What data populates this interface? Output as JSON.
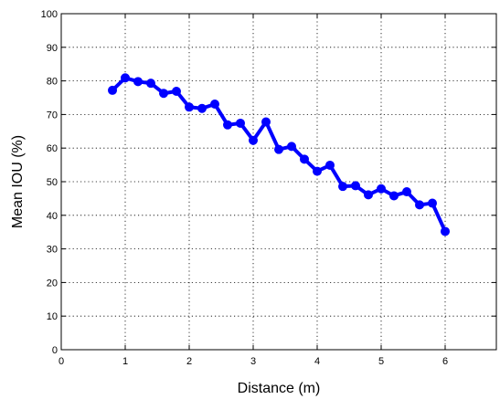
{
  "chart_data": {
    "type": "line",
    "xlabel": "Distance (m)",
    "ylabel": "Mean IOU (%)",
    "xlim": [
      0,
      6.8
    ],
    "ylim": [
      0,
      100
    ],
    "xticks": [
      0,
      1,
      2,
      3,
      4,
      5,
      6
    ],
    "yticks": [
      0,
      10,
      20,
      30,
      40,
      50,
      60,
      70,
      80,
      90,
      100
    ],
    "grid": true,
    "series": [
      {
        "color": "#0000ff",
        "marker": "circle",
        "x": [
          0.8,
          1.0,
          1.2,
          1.4,
          1.6,
          1.8,
          2.0,
          2.2,
          2.4,
          2.6,
          2.8,
          3.0,
          3.2,
          3.4,
          3.6,
          3.8,
          4.0,
          4.2,
          4.4,
          4.6,
          4.8,
          5.0,
          5.2,
          5.4,
          5.6,
          5.8,
          6.0
        ],
        "values": [
          77.2,
          80.9,
          79.8,
          79.3,
          76.3,
          76.9,
          72.2,
          71.8,
          73.1,
          66.9,
          67.4,
          62.3,
          67.8,
          59.6,
          60.5,
          56.7,
          53.1,
          54.9,
          48.6,
          48.8,
          46.1,
          47.9,
          45.8,
          47.0,
          43.1,
          43.6,
          35.2
        ]
      }
    ]
  }
}
